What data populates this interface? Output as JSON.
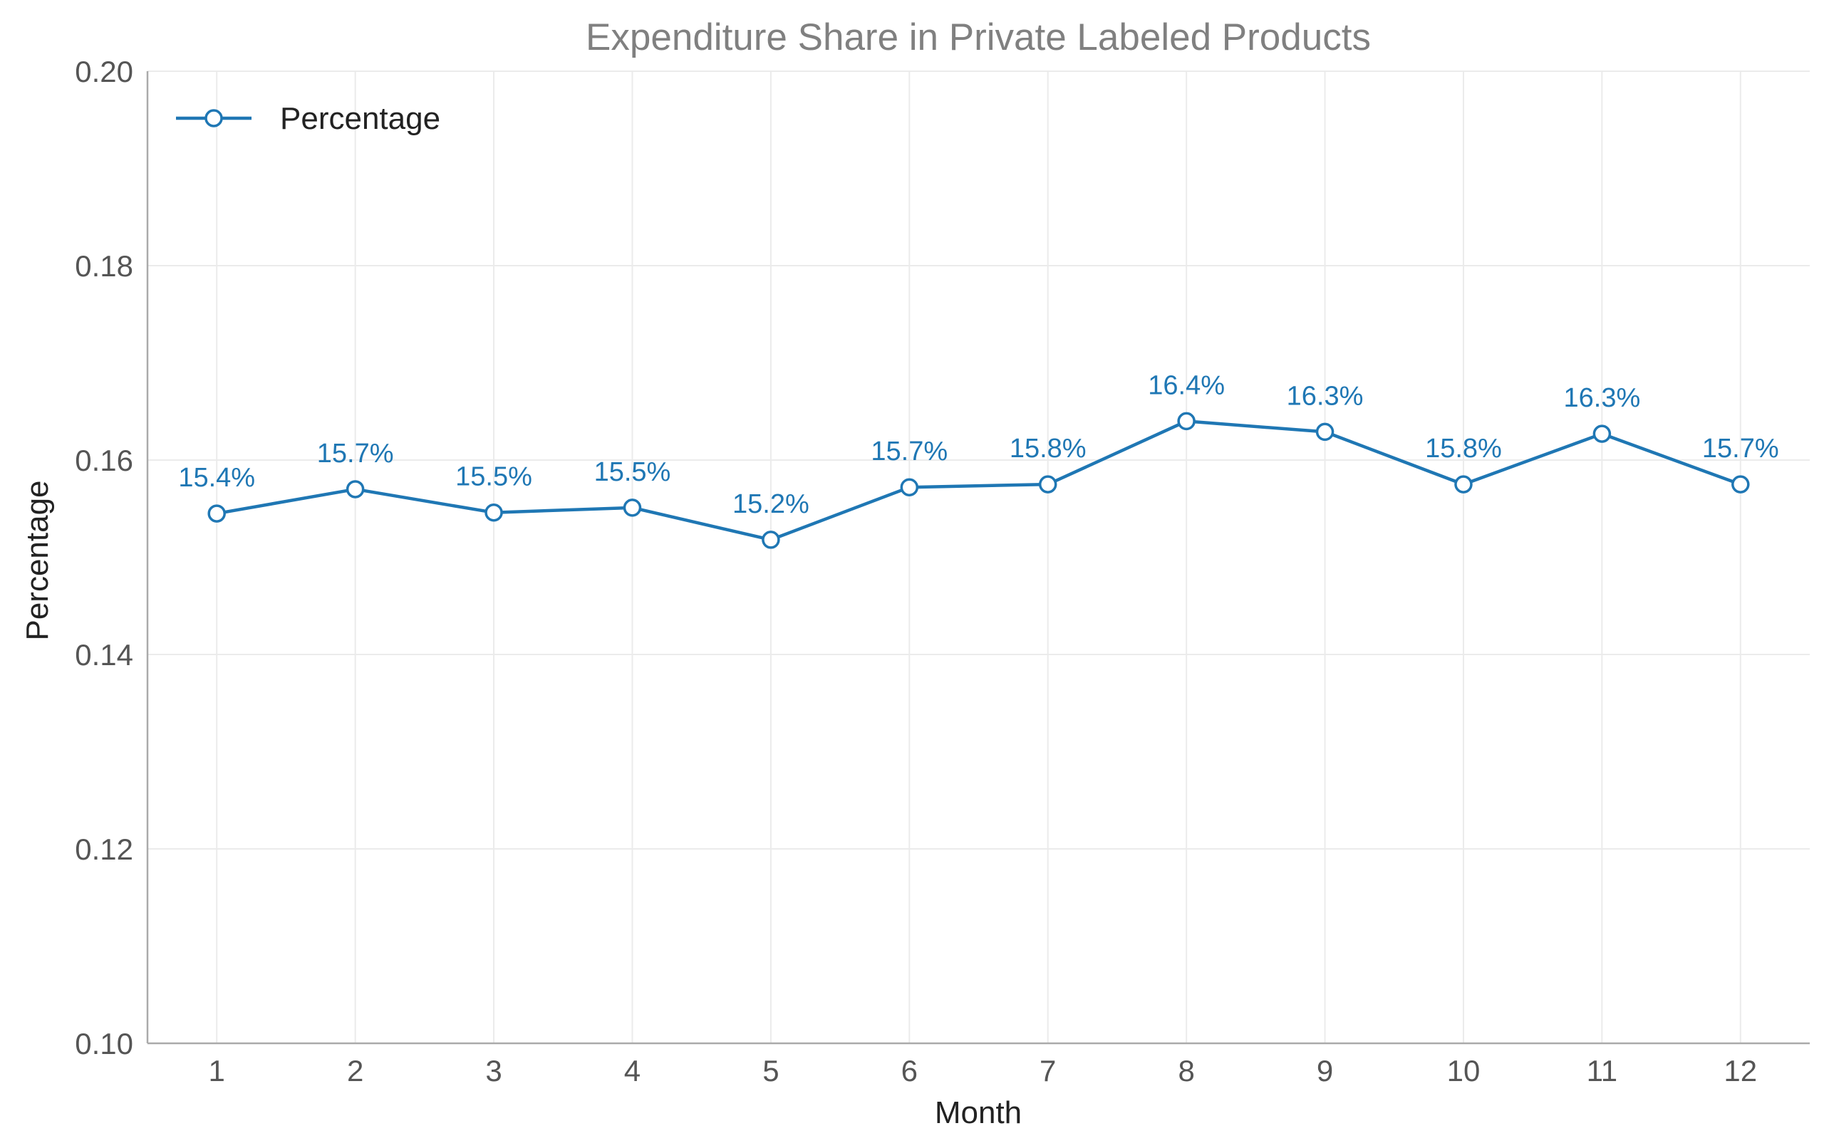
{
  "chart_data": {
    "type": "line",
    "title": "Expenditure Share in Private Labeled Products",
    "xlabel": "Month",
    "ylabel": "Percentage",
    "xlim": [
      0.5,
      12.5
    ],
    "ylim": [
      0.1,
      0.2
    ],
    "x_ticks": [
      "1",
      "2",
      "3",
      "4",
      "5",
      "6",
      "7",
      "8",
      "9",
      "10",
      "11",
      "12"
    ],
    "y_ticks": [
      "0.10",
      "0.12",
      "0.14",
      "0.16",
      "0.18",
      "0.20"
    ],
    "grid": true,
    "legend_position": "top-left",
    "series": [
      {
        "name": "Percentage",
        "color": "#1f77b4",
        "marker": "open-circle",
        "x": [
          1,
          2,
          3,
          4,
          5,
          6,
          7,
          8,
          9,
          10,
          11,
          12
        ],
        "values": [
          0.1545,
          0.157,
          0.1546,
          0.1551,
          0.1518,
          0.1572,
          0.1575,
          0.164,
          0.1629,
          0.1575,
          0.1627,
          0.1575
        ],
        "data_labels": [
          "15.4%",
          "15.7%",
          "15.5%",
          "15.5%",
          "15.2%",
          "15.7%",
          "15.8%",
          "16.4%",
          "16.3%",
          "15.8%",
          "16.3%",
          "15.7%"
        ]
      }
    ],
    "colors": {
      "title": "#808080",
      "tick_label": "#555555",
      "axis_label": "#222222",
      "spine": "#aaaaaa",
      "grid": "#ebebeb"
    }
  }
}
